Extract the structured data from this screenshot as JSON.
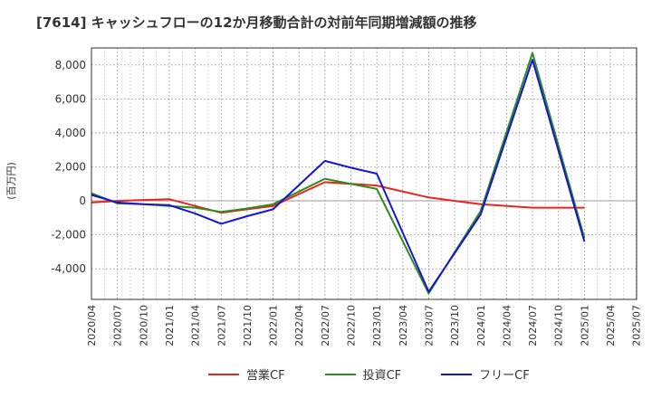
{
  "chart_data": {
    "type": "line",
    "title": "[7614]  キャッシュフローの12か月移動合計の対前年同期増減額の推移",
    "ylabel": "(百万円)",
    "xlabel": "",
    "ylim": [
      -5800,
      9000
    ],
    "yticks": [
      8000,
      6000,
      4000,
      2000,
      0,
      -2000,
      -4000
    ],
    "ytick_labels": [
      "8,000",
      "6,000",
      "4,000",
      "2,000",
      "0",
      "-2,000",
      "-4,000"
    ],
    "x_tick_labels": [
      "2020/04",
      "2020/07",
      "2020/10",
      "2021/01",
      "2021/04",
      "2021/07",
      "2021/10",
      "2022/01",
      "2022/04",
      "2022/07",
      "2022/10",
      "2023/01",
      "2023/04",
      "2023/07",
      "2023/10",
      "2024/01",
      "2024/04",
      "2024/07",
      "2024/10",
      "2025/01",
      "2025/04",
      "2025/07"
    ],
    "x": [
      "2020/04",
      "2020/07",
      "2020/10",
      "2021/01",
      "2021/04",
      "2021/07",
      "2021/10",
      "2022/01",
      "2022/04",
      "2022/07",
      "2022/10",
      "2023/01",
      "2023/04",
      "2023/07",
      "2023/10",
      "2024/01",
      "2024/04",
      "2024/07",
      "2024/10",
      "2025/01"
    ],
    "grid": true,
    "legend_position": "bottom",
    "series": [
      {
        "name": "営業CF",
        "color": "#e8251e",
        "values": [
          -100,
          0,
          50,
          100,
          -300,
          -700,
          -500,
          -300,
          null,
          1100,
          1000,
          900,
          null,
          200,
          null,
          -200,
          null,
          -400,
          null,
          -400
        ]
      },
      {
        "name": "投資CF",
        "color": "#2e8b1e",
        "values": [
          450,
          -150,
          -200,
          -300,
          -400,
          -650,
          -450,
          -200,
          null,
          1300,
          1000,
          700,
          null,
          -5450,
          null,
          -600,
          null,
          8700,
          null,
          -2200
        ]
      },
      {
        "name": "フリーCF",
        "color": "#1515d2",
        "values": [
          350,
          -100,
          -200,
          -250,
          -750,
          -1350,
          -900,
          -500,
          null,
          2350,
          1950,
          1600,
          null,
          -5350,
          null,
          -800,
          null,
          8300,
          null,
          -2400
        ]
      }
    ]
  }
}
